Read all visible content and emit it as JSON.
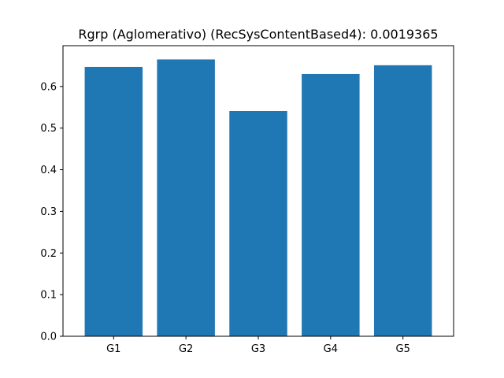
{
  "chart_data": {
    "type": "bar",
    "title": "Rgrp (Aglomerativo) (RecSysContentBased4): 0.0019365",
    "xlabel": "",
    "ylabel": "",
    "categories": [
      "G1",
      "G2",
      "G3",
      "G4",
      "G5"
    ],
    "values": [
      0.647,
      0.665,
      0.541,
      0.63,
      0.651
    ],
    "ylim": [
      0,
      0.698
    ],
    "yticks": [
      0.0,
      0.1,
      0.2,
      0.3,
      0.4,
      0.5,
      0.6
    ],
    "ytick_labels": [
      "0.0",
      "0.1",
      "0.2",
      "0.3",
      "0.4",
      "0.5",
      "0.6"
    ],
    "grid": false,
    "legend": "none",
    "bar_color": "#1f77b4"
  }
}
